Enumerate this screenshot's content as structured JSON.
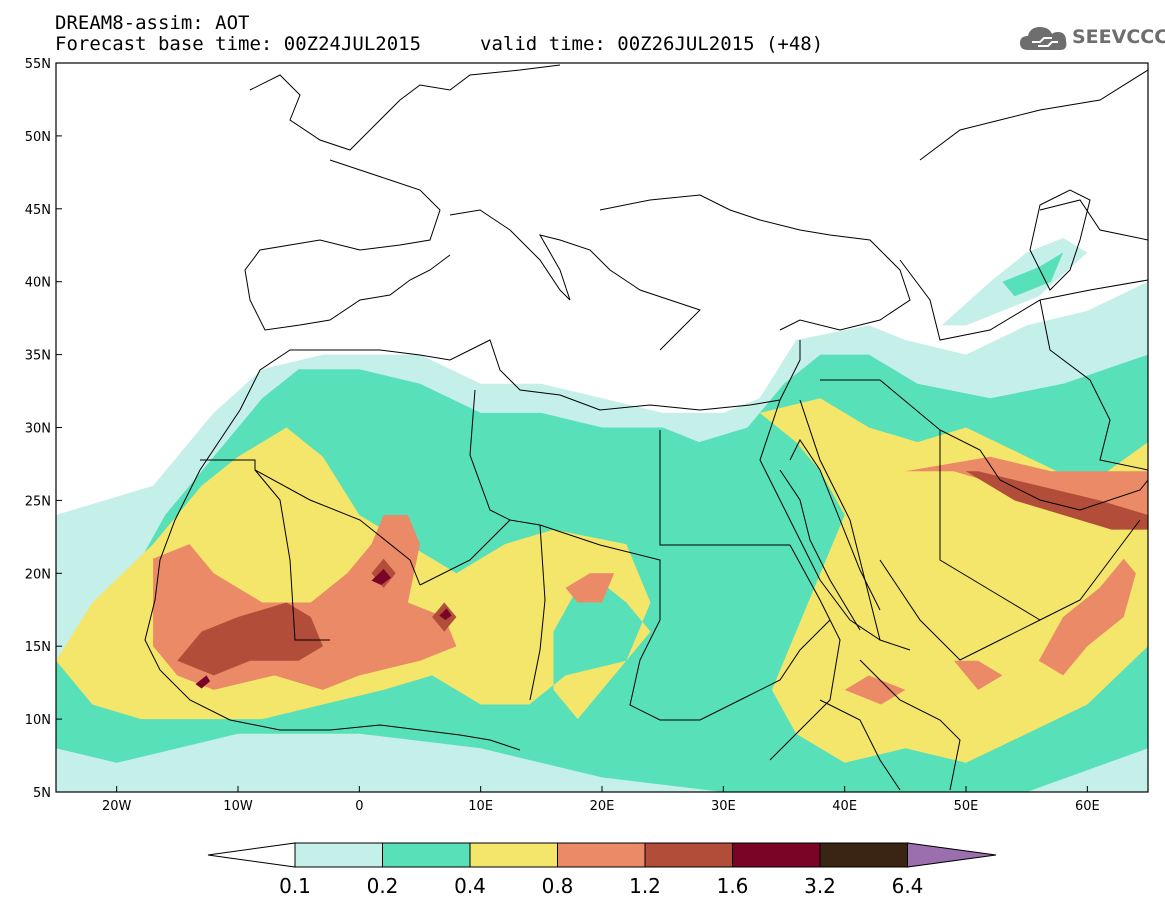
{
  "title": {
    "line1": "DREAM8-assim: AOT",
    "line2": "Forecast base time: 00Z24JUL2015",
    "valid": "valid time: 00Z26JUL2015 (+48)"
  },
  "logo": {
    "icon": "cloud-icon",
    "text": "SEEVCCC",
    "color": "#6e6e6e"
  },
  "map": {
    "lon_range": [
      -25,
      65
    ],
    "lat_range": [
      5,
      55
    ],
    "x_ticks": [
      {
        "lon": -20,
        "label": "20W"
      },
      {
        "lon": -10,
        "label": "10W"
      },
      {
        "lon": 0,
        "label": "0"
      },
      {
        "lon": 10,
        "label": "10E"
      },
      {
        "lon": 20,
        "label": "20E"
      },
      {
        "lon": 30,
        "label": "30E"
      },
      {
        "lon": 40,
        "label": "40E"
      },
      {
        "lon": 50,
        "label": "50E"
      },
      {
        "lon": 60,
        "label": "60E"
      }
    ],
    "y_ticks": [
      {
        "lat": 55,
        "label": "55N"
      },
      {
        "lat": 50,
        "label": "50N"
      },
      {
        "lat": 45,
        "label": "45N"
      },
      {
        "lat": 40,
        "label": "40N"
      },
      {
        "lat": 35,
        "label": "35N"
      },
      {
        "lat": 30,
        "label": "30N"
      },
      {
        "lat": 25,
        "label": "25N"
      },
      {
        "lat": 20,
        "label": "20N"
      },
      {
        "lat": 15,
        "label": "15N"
      },
      {
        "lat": 10,
        "label": "10N"
      },
      {
        "lat": 5,
        "label": "5N"
      }
    ]
  },
  "colorbar": {
    "colors": [
      "#c5efe9",
      "#58e0b8",
      "#f4e56b",
      "#ea8a67",
      "#b24d3a",
      "#7a0426",
      "#3a2515",
      "#9b6fad"
    ],
    "labels": [
      "0.1",
      "0.2",
      "0.4",
      "0.8",
      "1.2",
      "1.6",
      "3.2",
      "6.4"
    ]
  }
}
